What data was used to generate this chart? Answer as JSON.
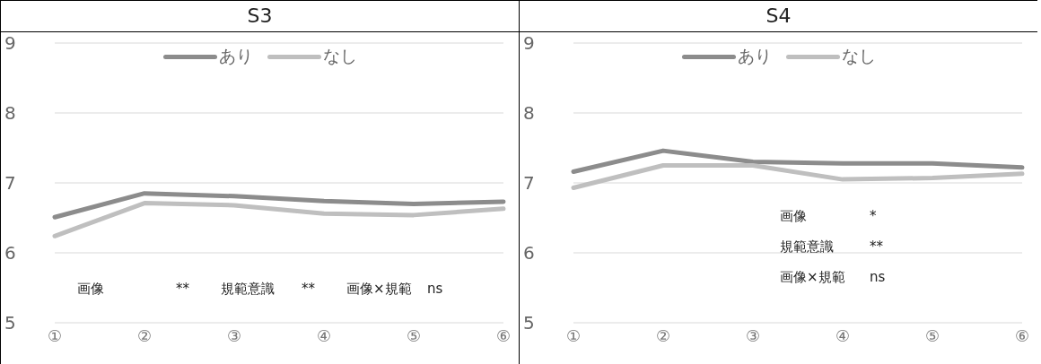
{
  "chart_data": [
    {
      "type": "line",
      "title": "S3",
      "categories": [
        "①",
        "②",
        "③",
        "④",
        "⑤",
        "⑥"
      ],
      "series": [
        {
          "name": "あり",
          "color": "#8c8c8c",
          "values": [
            6.51,
            6.85,
            6.81,
            6.74,
            6.7,
            6.73
          ]
        },
        {
          "name": "なし",
          "color": "#bfbfbf",
          "values": [
            6.24,
            6.71,
            6.68,
            6.56,
            6.54,
            6.63
          ]
        }
      ],
      "ylim": [
        5,
        9
      ],
      "yticks": [
        5,
        6,
        7,
        8,
        9
      ],
      "grid": "y",
      "legend": "top",
      "marker": "none",
      "line_style": "solid",
      "annotations": [
        "画像",
        "**",
        "規範意識",
        "**",
        "画像×規範",
        "ns"
      ]
    },
    {
      "type": "line",
      "title": "S4",
      "categories": [
        "①",
        "②",
        "③",
        "④",
        "⑤",
        "⑥"
      ],
      "series": [
        {
          "name": "あり",
          "color": "#8c8c8c",
          "values": [
            7.16,
            7.46,
            7.3,
            7.28,
            7.28,
            7.22
          ]
        },
        {
          "name": "なし",
          "color": "#bfbfbf",
          "values": [
            6.93,
            7.25,
            7.25,
            7.05,
            7.07,
            7.13
          ]
        }
      ],
      "ylim": [
        5,
        9
      ],
      "yticks": [
        5,
        6,
        7,
        8,
        9
      ],
      "grid": "y",
      "legend": "top",
      "marker": "none",
      "line_style": "solid",
      "annotations": [
        "画像",
        "*",
        "規範意識",
        "**",
        "画像×規範",
        "ns"
      ]
    }
  ]
}
